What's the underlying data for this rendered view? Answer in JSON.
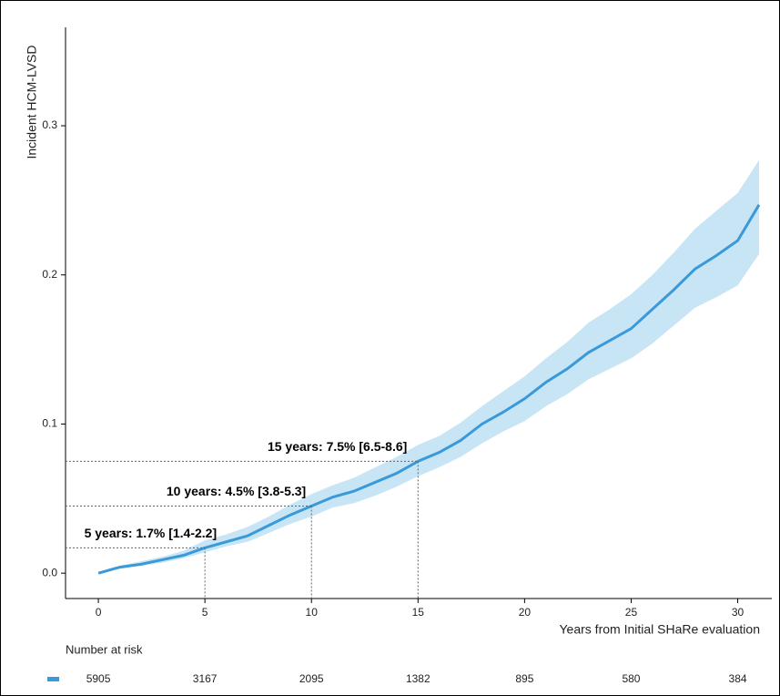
{
  "chart_data": {
    "type": "line",
    "y_label": "Incident HCM-LVSD",
    "x_label": "Years from Initial SHaRe evaluation",
    "x": [
      0,
      1,
      2,
      3,
      4,
      5,
      6,
      7,
      8,
      9,
      10,
      11,
      12,
      13,
      14,
      15,
      16,
      17,
      18,
      19,
      20,
      21,
      22,
      23,
      24,
      25,
      26,
      27,
      28,
      29,
      30,
      31
    ],
    "series": [
      {
        "color": "#3a9ad9",
        "values": [
          0,
          0.004,
          0.006,
          0.009,
          0.012,
          0.017,
          0.021,
          0.025,
          0.032,
          0.039,
          0.045,
          0.051,
          0.055,
          0.061,
          0.067,
          0.075,
          0.081,
          0.089,
          0.1,
          0.108,
          0.117,
          0.128,
          0.137,
          0.148,
          0.156,
          0.164,
          0.177,
          0.19,
          0.204,
          0.213,
          0.223,
          0.247
        ],
        "lower": [
          0,
          0.003,
          0.005,
          0.007,
          0.01,
          0.014,
          0.018,
          0.021,
          0.027,
          0.033,
          0.038,
          0.044,
          0.047,
          0.052,
          0.058,
          0.065,
          0.071,
          0.078,
          0.087,
          0.095,
          0.102,
          0.112,
          0.12,
          0.13,
          0.137,
          0.144,
          0.154,
          0.166,
          0.178,
          0.185,
          0.193,
          0.214
        ],
        "upper": [
          0,
          0.005,
          0.008,
          0.011,
          0.015,
          0.022,
          0.026,
          0.031,
          0.038,
          0.046,
          0.053,
          0.059,
          0.064,
          0.071,
          0.078,
          0.086,
          0.092,
          0.101,
          0.112,
          0.122,
          0.132,
          0.144,
          0.155,
          0.168,
          0.177,
          0.187,
          0.2,
          0.215,
          0.231,
          0.243,
          0.255,
          0.277
        ],
        "band_color": "#c8e5f6"
      }
    ],
    "xlim": [
      -1.54,
      31.6
    ],
    "ylim": [
      -0.017,
      0.366
    ],
    "xticks": [
      0,
      5,
      10,
      15,
      20,
      25,
      30
    ],
    "yticks": [
      {
        "value": 0,
        "label": "0.0"
      },
      0.1,
      0.2,
      0.3
    ],
    "annotations": [
      {
        "x": 5,
        "y": 0.017,
        "label": "5 years: 1.7% [1.4-2.2]"
      },
      {
        "x": 10,
        "y": 0.045,
        "label": "10 years: 4.5% [3.8-5.3]"
      },
      {
        "x": 15,
        "y": 0.075,
        "label": "15 years: 7.5% [6.5-8.6]"
      }
    ],
    "risk_table": {
      "title": "Number at risk",
      "values": [
        5905,
        3167,
        2095,
        1382,
        895,
        580,
        384
      ]
    }
  }
}
